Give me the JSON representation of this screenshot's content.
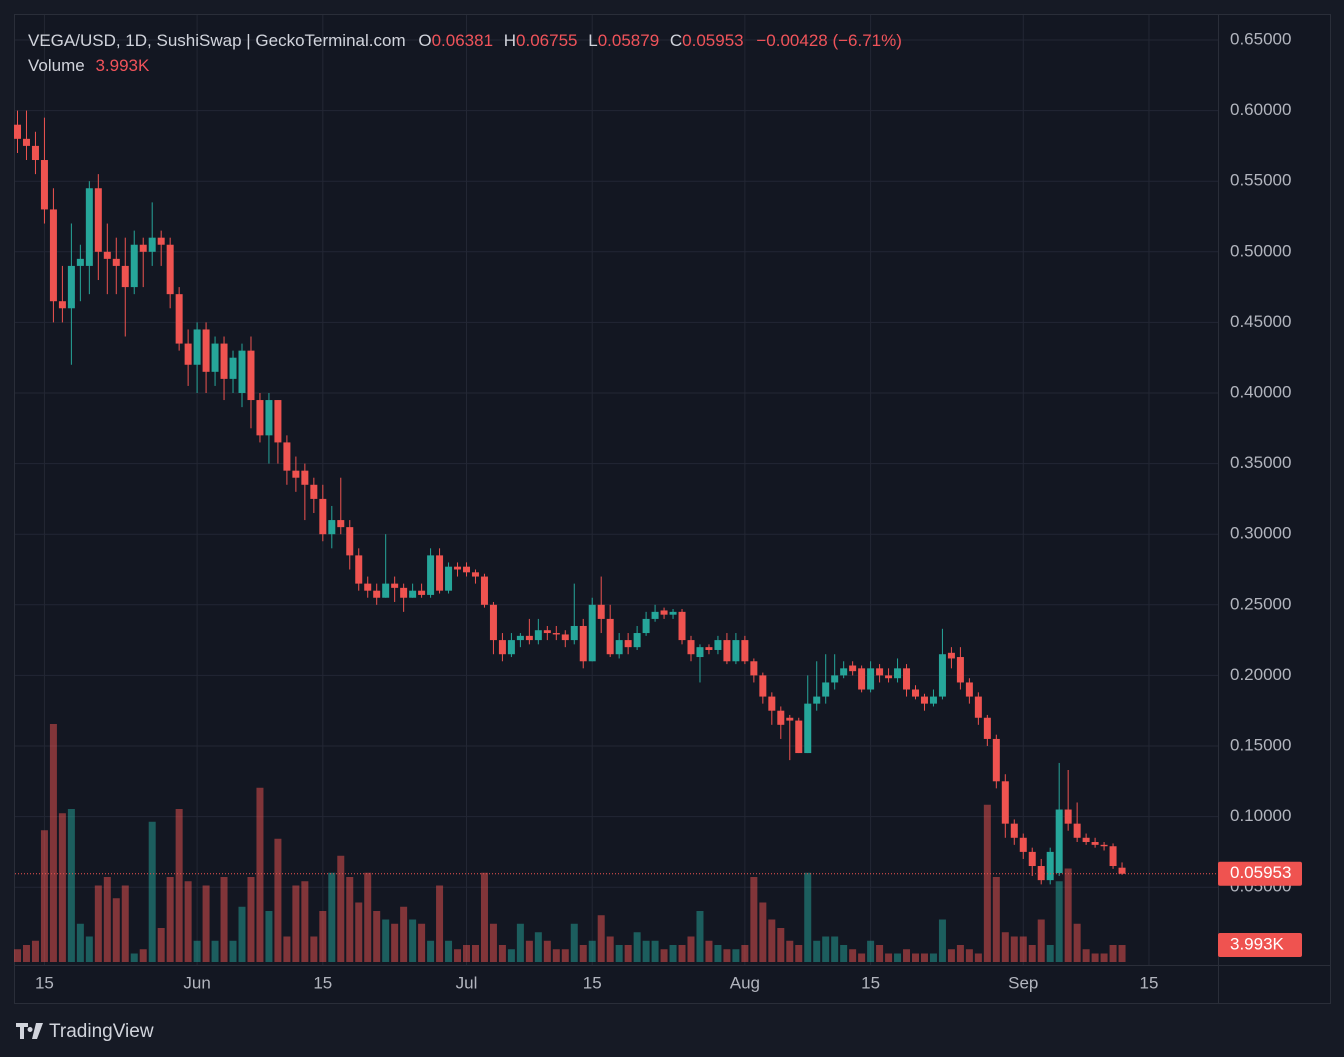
{
  "chart_data": {
    "type": "candlestick",
    "title": "VEGA/USD, 1D, SushiSwap | GeckoTerminal.com",
    "legend_labels": [
      "O",
      "H",
      "L",
      "C"
    ],
    "change": "−0.00428 (−6.71%)",
    "branding": "TradingView",
    "up_color": "#26a69a",
    "down_color": "#ef5350",
    "categories": [
      "05-12",
      "05-13",
      "05-14",
      "05-15",
      "05-16",
      "05-17",
      "05-18",
      "05-19",
      "05-20",
      "05-21",
      "05-22",
      "05-23",
      "05-24",
      "05-25",
      "05-26",
      "05-27",
      "05-28",
      "05-29",
      "05-30",
      "05-31",
      "06-01",
      "06-02",
      "06-03",
      "06-04",
      "06-05",
      "06-06",
      "06-07",
      "06-08",
      "06-09",
      "06-10",
      "06-11",
      "06-12",
      "06-13",
      "06-14",
      "06-15",
      "06-16",
      "06-17",
      "06-18",
      "06-19",
      "06-20",
      "06-21",
      "06-22",
      "06-23",
      "06-24",
      "06-25",
      "06-26",
      "06-27",
      "06-28",
      "06-29",
      "06-30",
      "07-01",
      "07-02",
      "07-03",
      "07-04",
      "07-05",
      "07-06",
      "07-07",
      "07-08",
      "07-09",
      "07-10",
      "07-11",
      "07-12",
      "07-13",
      "07-14",
      "07-15",
      "07-16",
      "07-17",
      "07-18",
      "07-19",
      "07-20",
      "07-21",
      "07-22",
      "07-23",
      "07-24",
      "07-25",
      "07-26",
      "07-27",
      "07-28",
      "07-29",
      "07-30",
      "07-31",
      "08-01",
      "08-02",
      "08-03",
      "08-04",
      "08-05",
      "08-06",
      "08-07",
      "08-08",
      "08-09",
      "08-10",
      "08-11",
      "08-12",
      "08-13",
      "08-14",
      "08-15",
      "08-16",
      "08-17",
      "08-18",
      "08-19",
      "08-20",
      "08-21",
      "08-22",
      "08-23",
      "08-24",
      "08-25",
      "08-26",
      "08-27",
      "08-28",
      "08-29",
      "08-30",
      "08-31",
      "09-01",
      "09-02",
      "09-03",
      "09-04",
      "09-05",
      "09-06",
      "09-07",
      "09-08",
      "09-09",
      "09-10",
      "09-11",
      "09-12"
    ],
    "open": [
      0.59,
      0.58,
      0.575,
      0.565,
      0.53,
      0.465,
      0.46,
      0.49,
      0.49,
      0.545,
      0.5,
      0.495,
      0.49,
      0.475,
      0.505,
      0.5,
      0.51,
      0.505,
      0.47,
      0.435,
      0.42,
      0.445,
      0.415,
      0.435,
      0.41,
      0.4,
      0.43,
      0.395,
      0.37,
      0.395,
      0.365,
      0.345,
      0.345,
      0.335,
      0.325,
      0.3,
      0.31,
      0.305,
      0.285,
      0.265,
      0.26,
      0.255,
      0.265,
      0.262,
      0.255,
      0.26,
      0.257,
      0.285,
      0.26,
      0.277,
      0.277,
      0.273,
      0.27,
      0.25,
      0.225,
      0.215,
      0.225,
      0.228,
      0.225,
      0.232,
      0.23,
      0.229,
      0.225,
      0.235,
      0.21,
      0.25,
      0.24,
      0.215,
      0.225,
      0.22,
      0.23,
      0.24,
      0.246,
      0.243,
      0.245,
      0.225,
      0.213,
      0.22,
      0.218,
      0.225,
      0.21,
      0.225,
      0.21,
      0.2,
      0.185,
      0.175,
      0.17,
      0.168,
      0.145,
      0.18,
      0.185,
      0.195,
      0.2,
      0.207,
      0.205,
      0.19,
      0.205,
      0.2,
      0.198,
      0.205,
      0.19,
      0.185,
      0.18,
      0.185,
      0.216,
      0.213,
      0.195,
      0.185,
      0.17,
      0.155,
      0.125,
      0.095,
      0.085,
      0.075,
      0.065,
      0.055,
      0.06,
      0.105,
      0.095,
      0.085,
      0.082,
      0.08,
      0.079,
      0.06381
    ],
    "high": [
      0.6,
      0.6,
      0.585,
      0.595,
      0.545,
      0.49,
      0.52,
      0.505,
      0.55,
      0.555,
      0.52,
      0.51,
      0.51,
      0.515,
      0.51,
      0.535,
      0.515,
      0.51,
      0.475,
      0.445,
      0.45,
      0.45,
      0.44,
      0.44,
      0.43,
      0.435,
      0.44,
      0.4,
      0.4,
      0.395,
      0.37,
      0.355,
      0.35,
      0.34,
      0.335,
      0.32,
      0.34,
      0.31,
      0.29,
      0.27,
      0.265,
      0.3,
      0.27,
      0.265,
      0.265,
      0.265,
      0.29,
      0.29,
      0.28,
      0.28,
      0.28,
      0.275,
      0.272,
      0.252,
      0.23,
      0.23,
      0.23,
      0.24,
      0.24,
      0.235,
      0.235,
      0.232,
      0.265,
      0.24,
      0.255,
      0.27,
      0.25,
      0.23,
      0.23,
      0.235,
      0.245,
      0.25,
      0.248,
      0.247,
      0.247,
      0.228,
      0.222,
      0.222,
      0.228,
      0.23,
      0.23,
      0.228,
      0.212,
      0.202,
      0.188,
      0.178,
      0.172,
      0.17,
      0.2,
      0.21,
      0.215,
      0.215,
      0.21,
      0.21,
      0.207,
      0.21,
      0.208,
      0.205,
      0.212,
      0.208,
      0.193,
      0.187,
      0.19,
      0.233,
      0.22,
      0.22,
      0.198,
      0.188,
      0.172,
      0.158,
      0.13,
      0.098,
      0.088,
      0.078,
      0.07,
      0.078,
      0.138,
      0.133,
      0.11,
      0.088,
      0.085,
      0.082,
      0.081,
      0.06755
    ],
    "low": [
      0.57,
      0.565,
      0.555,
      0.52,
      0.45,
      0.45,
      0.42,
      0.465,
      0.47,
      0.48,
      0.47,
      0.47,
      0.44,
      0.47,
      0.475,
      0.49,
      0.49,
      0.46,
      0.43,
      0.405,
      0.4,
      0.4,
      0.405,
      0.395,
      0.4,
      0.39,
      0.375,
      0.365,
      0.35,
      0.35,
      0.335,
      0.33,
      0.31,
      0.315,
      0.295,
      0.29,
      0.3,
      0.275,
      0.26,
      0.255,
      0.25,
      0.255,
      0.252,
      0.245,
      0.255,
      0.255,
      0.255,
      0.258,
      0.258,
      0.27,
      0.27,
      0.265,
      0.248,
      0.215,
      0.21,
      0.213,
      0.22,
      0.222,
      0.222,
      0.225,
      0.225,
      0.22,
      0.222,
      0.205,
      0.21,
      0.23,
      0.213,
      0.212,
      0.215,
      0.218,
      0.228,
      0.238,
      0.24,
      0.24,
      0.222,
      0.21,
      0.195,
      0.215,
      0.215,
      0.208,
      0.208,
      0.208,
      0.195,
      0.18,
      0.165,
      0.155,
      0.14,
      0.145,
      0.145,
      0.175,
      0.18,
      0.19,
      0.198,
      0.2,
      0.188,
      0.188,
      0.195,
      0.195,
      0.195,
      0.185,
      0.183,
      0.175,
      0.178,
      0.183,
      0.205,
      0.19,
      0.18,
      0.165,
      0.15,
      0.12,
      0.085,
      0.08,
      0.07,
      0.058,
      0.052,
      0.052,
      0.058,
      0.09,
      0.082,
      0.08,
      0.078,
      0.076,
      0.063,
      0.05879
    ],
    "close": [
      0.58,
      0.575,
      0.565,
      0.53,
      0.465,
      0.46,
      0.49,
      0.495,
      0.545,
      0.5,
      0.495,
      0.49,
      0.475,
      0.505,
      0.5,
      0.51,
      0.505,
      0.47,
      0.435,
      0.42,
      0.445,
      0.415,
      0.435,
      0.41,
      0.425,
      0.43,
      0.395,
      0.37,
      0.395,
      0.365,
      0.345,
      0.34,
      0.335,
      0.325,
      0.3,
      0.31,
      0.305,
      0.285,
      0.265,
      0.26,
      0.255,
      0.265,
      0.262,
      0.255,
      0.26,
      0.257,
      0.285,
      0.26,
      0.277,
      0.275,
      0.273,
      0.27,
      0.25,
      0.225,
      0.215,
      0.225,
      0.228,
      0.225,
      0.232,
      0.23,
      0.229,
      0.225,
      0.235,
      0.21,
      0.25,
      0.24,
      0.215,
      0.225,
      0.22,
      0.23,
      0.24,
      0.245,
      0.243,
      0.245,
      0.225,
      0.215,
      0.22,
      0.218,
      0.225,
      0.21,
      0.225,
      0.21,
      0.2,
      0.185,
      0.175,
      0.165,
      0.168,
      0.145,
      0.18,
      0.185,
      0.195,
      0.2,
      0.205,
      0.203,
      0.19,
      0.205,
      0.2,
      0.198,
      0.205,
      0.19,
      0.185,
      0.18,
      0.185,
      0.215,
      0.212,
      0.195,
      0.185,
      0.17,
      0.155,
      0.125,
      0.095,
      0.085,
      0.075,
      0.065,
      0.055,
      0.075,
      0.105,
      0.095,
      0.085,
      0.082,
      0.08,
      0.079,
      0.065,
      0.05953
    ],
    "volume": {
      "name": "Volume",
      "values": [
        3000,
        4000,
        5000,
        31000,
        56000,
        35000,
        36000,
        9000,
        6000,
        18000,
        20000,
        15000,
        18000,
        2000,
        3000,
        33000,
        8000,
        20000,
        36000,
        19000,
        5000,
        18000,
        5000,
        20000,
        5000,
        13000,
        20000,
        41000,
        12000,
        29000,
        6000,
        18000,
        19000,
        6000,
        12000,
        21000,
        25000,
        20000,
        14000,
        21000,
        12000,
        10000,
        9000,
        13000,
        10000,
        9000,
        5000,
        18000,
        5000,
        3000,
        4000,
        4000,
        21000,
        9000,
        4000,
        3000,
        9000,
        5000,
        7000,
        5000,
        3000,
        3000,
        9000,
        4000,
        5000,
        11000,
        6000,
        4000,
        4000,
        7000,
        5000,
        5000,
        3000,
        4000,
        4000,
        6000,
        12000,
        5000,
        4000,
        3000,
        3000,
        4000,
        20000,
        14000,
        10000,
        8000,
        5000,
        4000,
        21000,
        5000,
        6000,
        6000,
        4000,
        3000,
        2000,
        5000,
        4000,
        2000,
        2000,
        3000,
        2000,
        2000,
        2000,
        10000,
        3000,
        4000,
        3000,
        2000,
        37000,
        20000,
        7000,
        6000,
        6000,
        4000,
        10000,
        4000,
        19000,
        22000,
        9000,
        3000,
        2000,
        2000,
        4000,
        3993
      ],
      "last_label": "3.993K"
    },
    "volume_ylim": [
      0,
      60000
    ],
    "ylim": [
      -0.0051,
      0.6677
    ],
    "yticks": [
      {
        "value": 0.05,
        "label": "0.05000"
      },
      {
        "value": 0.1,
        "label": "0.10000"
      },
      {
        "value": 0.15,
        "label": "0.15000"
      },
      {
        "value": 0.2,
        "label": "0.20000"
      },
      {
        "value": 0.25,
        "label": "0.25000"
      },
      {
        "value": 0.3,
        "label": "0.30000"
      },
      {
        "value": 0.35,
        "label": "0.35000"
      },
      {
        "value": 0.4,
        "label": "0.40000"
      },
      {
        "value": 0.45,
        "label": "0.45000"
      },
      {
        "value": 0.5,
        "label": "0.50000"
      },
      {
        "value": 0.55,
        "label": "0.55000"
      },
      {
        "value": 0.6,
        "label": "0.60000"
      },
      {
        "value": 0.65,
        "label": "0.65000"
      }
    ],
    "xticks": [
      {
        "value": "05-15",
        "label": "15"
      },
      {
        "value": "06-01",
        "label": "Jun"
      },
      {
        "value": "06-15",
        "label": "15"
      },
      {
        "value": "07-01",
        "label": "Jul"
      },
      {
        "value": "07-15",
        "label": "15"
      },
      {
        "value": "08-01",
        "label": "Aug"
      },
      {
        "value": "08-15",
        "label": "15"
      },
      {
        "value": "09-01",
        "label": "Sep"
      },
      {
        "value": "09-15",
        "label": "15"
      }
    ],
    "grid": true
  }
}
